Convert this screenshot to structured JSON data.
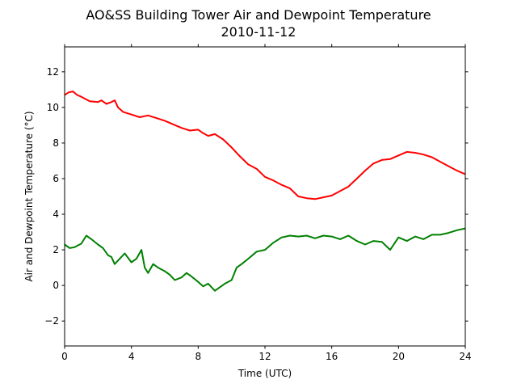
{
  "chart_data": {
    "type": "line",
    "title": "AO&SS Building Tower Air and Dewpoint Temperature",
    "subtitle": "2010-11-12",
    "xlabel": "Time (UTC)",
    "ylabel": "Air and Dewpoint Temperature (°C)",
    "xlim": [
      0,
      24
    ],
    "ylim": [
      -3.4,
      13.4
    ],
    "xticks": [
      0,
      4,
      8,
      12,
      16,
      20,
      24
    ],
    "yticks": [
      -2,
      0,
      2,
      4,
      6,
      8,
      10,
      12
    ],
    "grid": false,
    "legend": "none",
    "series": [
      {
        "color": "#ff0000",
        "x": [
          0,
          0.25,
          0.5,
          0.75,
          1.0,
          1.5,
          2.0,
          2.2,
          2.5,
          2.8,
          3.0,
          3.2,
          3.5,
          4.0,
          4.5,
          5.0,
          5.5,
          6.0,
          6.5,
          7.0,
          7.5,
          8.0,
          8.3,
          8.6,
          9.0,
          9.5,
          10.0,
          10.5,
          11.0,
          11.5,
          12.0,
          12.5,
          13.0,
          13.5,
          14.0,
          14.5,
          15.0,
          15.5,
          16.0,
          16.5,
          17.0,
          17.5,
          18.0,
          18.5,
          19.0,
          19.5,
          20.0,
          20.5,
          21.0,
          21.5,
          22.0,
          22.5,
          23.0,
          23.5,
          24.0
        ],
        "values": [
          10.7,
          10.85,
          10.9,
          10.7,
          10.6,
          10.35,
          10.3,
          10.4,
          10.2,
          10.3,
          10.4,
          10.0,
          9.75,
          9.6,
          9.45,
          9.55,
          9.4,
          9.25,
          9.05,
          8.85,
          8.7,
          8.75,
          8.55,
          8.4,
          8.5,
          8.2,
          7.75,
          7.25,
          6.8,
          6.55,
          6.1,
          5.9,
          5.65,
          5.45,
          5.0,
          4.9,
          4.85,
          4.95,
          5.05,
          5.3,
          5.55,
          6.0,
          6.45,
          6.85,
          7.05,
          7.1,
          7.3,
          7.5,
          7.45,
          7.35,
          7.2,
          6.95,
          6.7,
          6.45,
          6.25
        ]
      },
      {
        "color": "#008000",
        "x": [
          0,
          0.3,
          0.6,
          1.0,
          1.3,
          1.6,
          2.0,
          2.3,
          2.6,
          2.8,
          3.0,
          3.3,
          3.6,
          4.0,
          4.3,
          4.6,
          4.8,
          5.0,
          5.3,
          5.6,
          6.0,
          6.3,
          6.6,
          7.0,
          7.3,
          7.6,
          8.0,
          8.3,
          8.6,
          9.0,
          9.3,
          9.6,
          10.0,
          10.3,
          10.6,
          11.0,
          11.5,
          12.0,
          12.5,
          13.0,
          13.5,
          14.0,
          14.5,
          15.0,
          15.5,
          16.0,
          16.5,
          17.0,
          17.5,
          18.0,
          18.5,
          19.0,
          19.5,
          20.0,
          20.5,
          21.0,
          21.5,
          22.0,
          22.5,
          23.0,
          23.5,
          24.0
        ],
        "values": [
          2.3,
          2.1,
          2.15,
          2.35,
          2.8,
          2.6,
          2.3,
          2.1,
          1.7,
          1.6,
          1.2,
          1.5,
          1.8,
          1.3,
          1.5,
          2.0,
          1.0,
          0.7,
          1.2,
          1.0,
          0.8,
          0.6,
          0.3,
          0.45,
          0.7,
          0.5,
          0.2,
          -0.05,
          0.1,
          -0.3,
          -0.1,
          0.1,
          0.3,
          1.0,
          1.2,
          1.5,
          1.9,
          2.0,
          2.4,
          2.7,
          2.8,
          2.75,
          2.8,
          2.65,
          2.8,
          2.75,
          2.6,
          2.8,
          2.5,
          2.3,
          2.5,
          2.45,
          2.0,
          2.7,
          2.5,
          2.75,
          2.6,
          2.85,
          2.85,
          2.95,
          3.1,
          3.2
        ]
      }
    ]
  }
}
